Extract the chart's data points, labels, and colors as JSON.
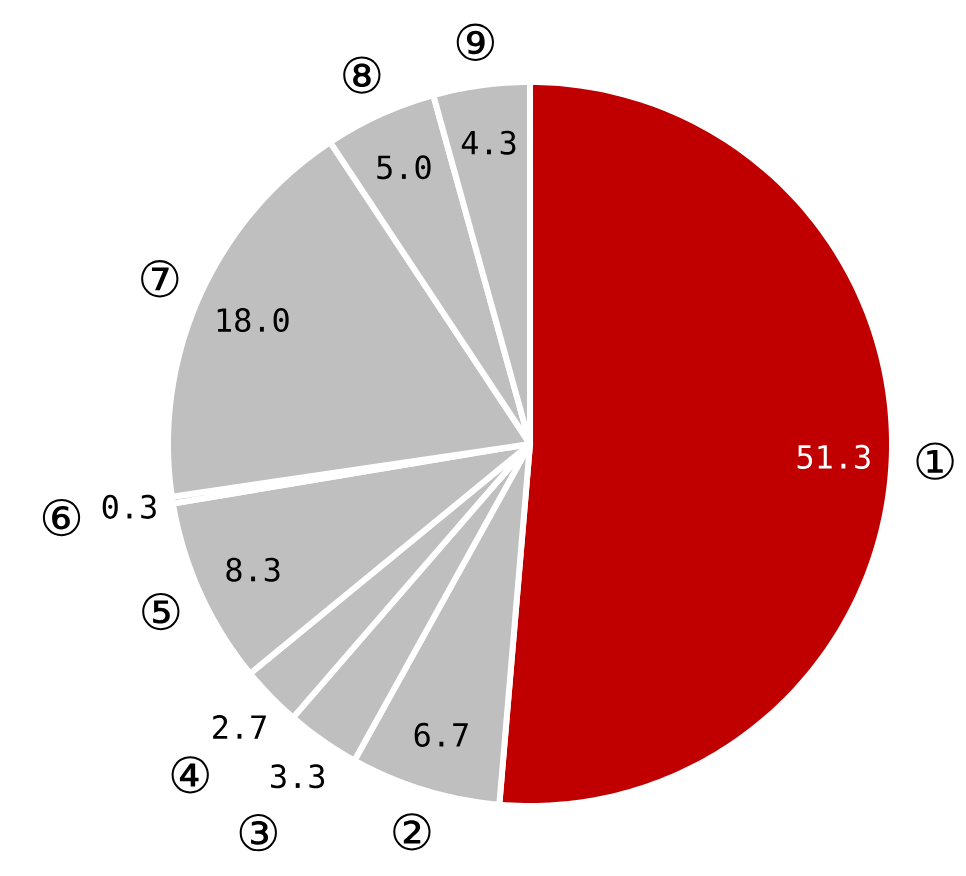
{
  "chart_data": {
    "type": "pie",
    "categories": [
      "①",
      "②",
      "③",
      "④",
      "⑤",
      "⑥",
      "⑦",
      "⑧",
      "⑨"
    ],
    "values": [
      51.3,
      6.7,
      3.3,
      2.7,
      8.3,
      0.3,
      18.0,
      5.0,
      4.3
    ],
    "value_labels": [
      "51.3",
      "6.7",
      "3.3",
      "2.7",
      "8.3",
      "0.3",
      "18.0",
      "5.0",
      "4.3"
    ],
    "colors": [
      "#c00000",
      "#bfbfbf",
      "#bfbfbf",
      "#bfbfbf",
      "#bfbfbf",
      "#bfbfbf",
      "#bfbfbf",
      "#bfbfbf",
      "#bfbfbf"
    ]
  }
}
